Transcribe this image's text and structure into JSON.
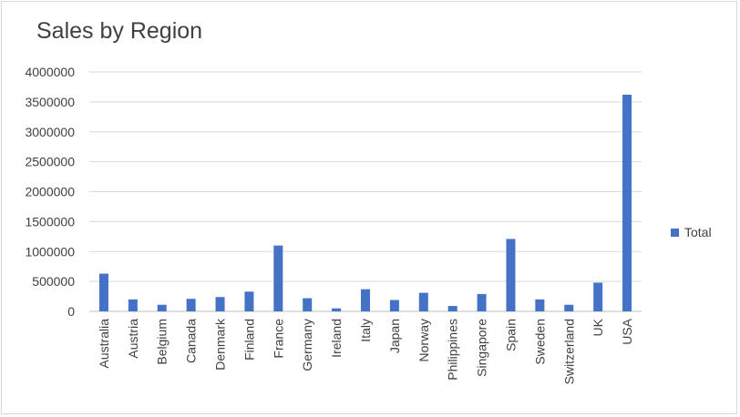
{
  "chart_data": {
    "type": "bar",
    "title": "Sales by Region",
    "xlabel": "",
    "ylabel": "",
    "ylim": [
      0,
      4000000
    ],
    "yticks": [
      "0",
      "500000",
      "1000000",
      "1500000",
      "2000000",
      "2500000",
      "3000000",
      "3500000",
      "4000000"
    ],
    "grid": true,
    "legend_position": "right",
    "categories": [
      "Australia",
      "Austria",
      "Belgium",
      "Canada",
      "Denmark",
      "Finland",
      "France",
      "Germany",
      "Ireland",
      "Italy",
      "Japan",
      "Norway",
      "Philippines",
      "Singapore",
      "Spain",
      "Sweden",
      "Switzerland",
      "UK",
      "USA"
    ],
    "series": [
      {
        "name": "Total",
        "color": "#4472c4",
        "values": [
          630000,
          200000,
          110000,
          210000,
          240000,
          330000,
          1100000,
          220000,
          50000,
          370000,
          190000,
          310000,
          90000,
          290000,
          1210000,
          200000,
          110000,
          480000,
          3620000
        ]
      }
    ]
  }
}
